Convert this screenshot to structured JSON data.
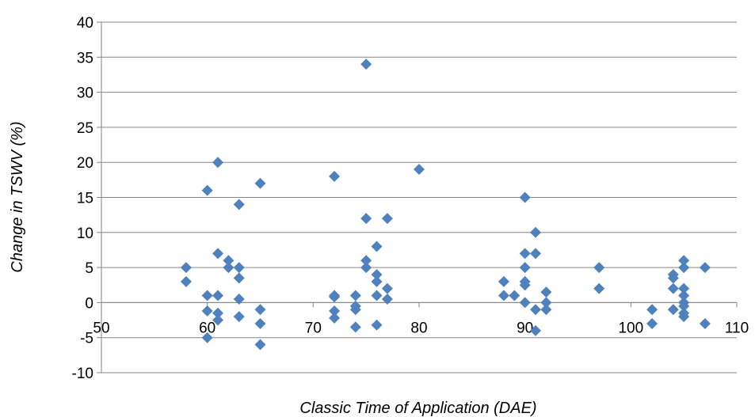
{
  "chart_data": {
    "type": "scatter",
    "title": "",
    "xlabel": "Classic Time of Application (DAE)",
    "ylabel": "Change in TSWV (%)",
    "xlim": [
      50,
      110
    ],
    "ylim": [
      -10,
      40
    ],
    "x_ticks": [
      "50",
      "60",
      "70",
      "80",
      "90",
      "100",
      "110"
    ],
    "y_ticks": [
      "-10",
      "-5",
      "0",
      "5",
      "10",
      "15",
      "20",
      "25",
      "30",
      "35",
      "40"
    ],
    "grid": "horizontal",
    "marker_color": "#4F81BD",
    "marker": "diamond",
    "points": [
      {
        "x": 58,
        "y": 5
      },
      {
        "x": 58,
        "y": 3
      },
      {
        "x": 60,
        "y": 16
      },
      {
        "x": 60,
        "y": 1
      },
      {
        "x": 60,
        "y": -1.2
      },
      {
        "x": 60,
        "y": -5
      },
      {
        "x": 61,
        "y": 20
      },
      {
        "x": 61,
        "y": 7
      },
      {
        "x": 61,
        "y": 1
      },
      {
        "x": 61,
        "y": -1.5
      },
      {
        "x": 61,
        "y": -2.5
      },
      {
        "x": 62,
        "y": 6
      },
      {
        "x": 62,
        "y": 5
      },
      {
        "x": 63,
        "y": 14
      },
      {
        "x": 63,
        "y": 5
      },
      {
        "x": 63,
        "y": 3.5
      },
      {
        "x": 63,
        "y": 0.5
      },
      {
        "x": 63,
        "y": -2
      },
      {
        "x": 65,
        "y": 17
      },
      {
        "x": 65,
        "y": -1
      },
      {
        "x": 65,
        "y": -3
      },
      {
        "x": 65,
        "y": -6
      },
      {
        "x": 72,
        "y": 18
      },
      {
        "x": 72,
        "y": 1
      },
      {
        "x": 72,
        "y": 0.8
      },
      {
        "x": 72,
        "y": -1.2
      },
      {
        "x": 72,
        "y": -2.2
      },
      {
        "x": 74,
        "y": 1
      },
      {
        "x": 74,
        "y": -0.5
      },
      {
        "x": 74,
        "y": -1
      },
      {
        "x": 74,
        "y": -3.5
      },
      {
        "x": 75,
        "y": 34
      },
      {
        "x": 75,
        "y": 12
      },
      {
        "x": 75,
        "y": 6
      },
      {
        "x": 75,
        "y": 5
      },
      {
        "x": 76,
        "y": 8
      },
      {
        "x": 76,
        "y": 4
      },
      {
        "x": 76,
        "y": 3
      },
      {
        "x": 76,
        "y": 1
      },
      {
        "x": 76,
        "y": -3.2
      },
      {
        "x": 77,
        "y": 12
      },
      {
        "x": 77,
        "y": 2
      },
      {
        "x": 77,
        "y": 0.5
      },
      {
        "x": 80,
        "y": 19
      },
      {
        "x": 88,
        "y": 3
      },
      {
        "x": 88,
        "y": 1
      },
      {
        "x": 89,
        "y": 1
      },
      {
        "x": 90,
        "y": 15
      },
      {
        "x": 90,
        "y": 7
      },
      {
        "x": 90,
        "y": 5
      },
      {
        "x": 90,
        "y": 3
      },
      {
        "x": 90,
        "y": 2.5
      },
      {
        "x": 90,
        "y": 0
      },
      {
        "x": 91,
        "y": 10
      },
      {
        "x": 91,
        "y": 7
      },
      {
        "x": 91,
        "y": -1
      },
      {
        "x": 91,
        "y": -4
      },
      {
        "x": 92,
        "y": 1.5
      },
      {
        "x": 92,
        "y": 0
      },
      {
        "x": 92,
        "y": -1
      },
      {
        "x": 97,
        "y": 5
      },
      {
        "x": 97,
        "y": 2
      },
      {
        "x": 102,
        "y": -1
      },
      {
        "x": 102,
        "y": -3
      },
      {
        "x": 104,
        "y": 4
      },
      {
        "x": 104,
        "y": 3.5
      },
      {
        "x": 104,
        "y": 2
      },
      {
        "x": 104,
        "y": -1
      },
      {
        "x": 105,
        "y": 6
      },
      {
        "x": 105,
        "y": 5
      },
      {
        "x": 105,
        "y": 2
      },
      {
        "x": 105,
        "y": 1
      },
      {
        "x": 105,
        "y": 0
      },
      {
        "x": 105,
        "y": -0.5
      },
      {
        "x": 105,
        "y": -1.5
      },
      {
        "x": 105,
        "y": -2
      },
      {
        "x": 107,
        "y": 5
      },
      {
        "x": 107,
        "y": -3
      }
    ]
  }
}
